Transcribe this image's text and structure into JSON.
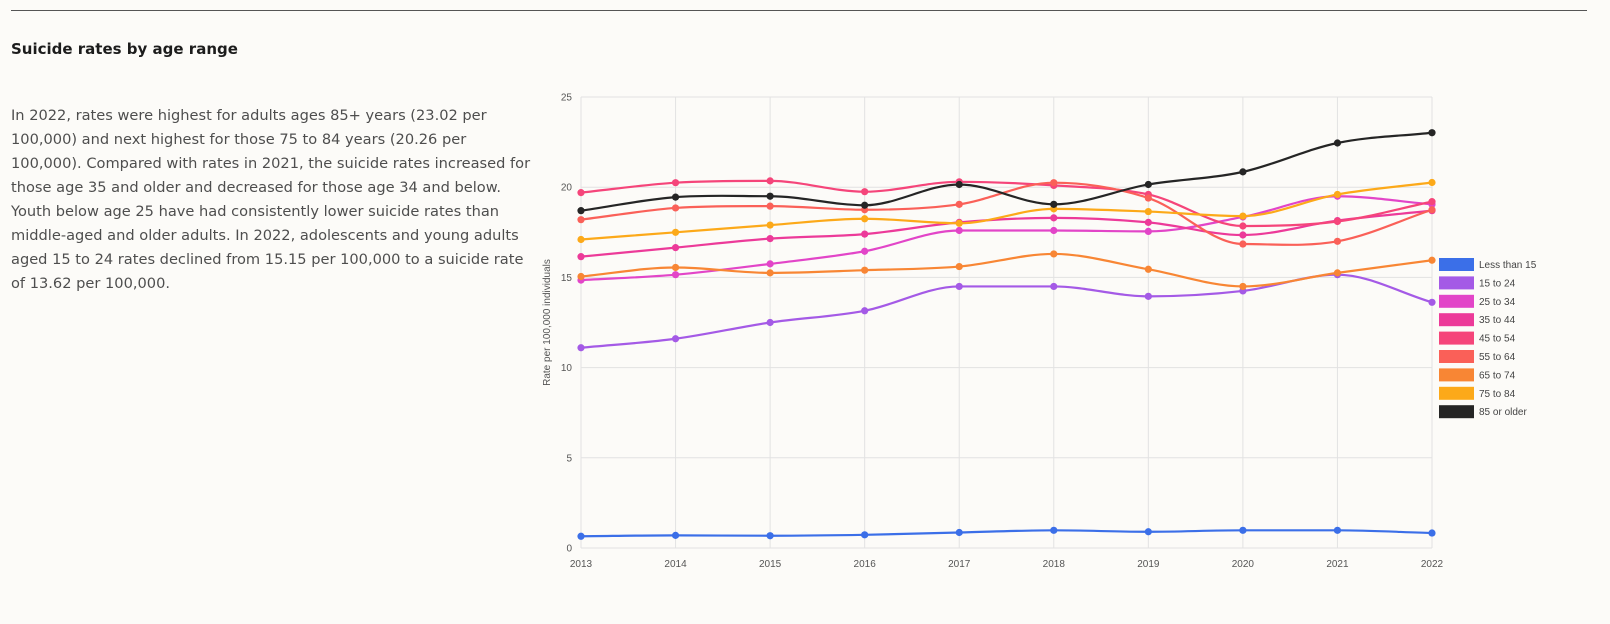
{
  "section": {
    "title": "Suicide rates by age range",
    "summary": "In 2022, rates were highest for adults ages 85+ years (23.02 per 100,000) and next highest for those 75 to 84 years (20.26 per 100,000). Compared with rates in 2021, the suicide rates increased for those age 35 and older and decreased for those age 34 and below. Youth below age 25 have had consistently lower suicide rates than middle-aged and older adults. In 2022, adolescents and young adults aged 15 to 24 rates declined from 15.15 per 100,000 to a suicide rate of 13.62 per 100,000."
  },
  "chart_data": {
    "type": "line",
    "title": "",
    "xlabel": "",
    "ylabel": "Rate per 100,000 individuals",
    "x": [
      2013,
      2014,
      2015,
      2016,
      2017,
      2018,
      2019,
      2020,
      2021,
      2022
    ],
    "ylim": [
      0,
      25
    ],
    "yticks": [
      0,
      5,
      10,
      15,
      20,
      25
    ],
    "grid": true,
    "legend_position": "right",
    "smooth": true,
    "series": [
      {
        "name": "Less than 15",
        "color": "#3b6fe8",
        "values": [
          0.65,
          0.7,
          0.68,
          0.73,
          0.86,
          0.98,
          0.9,
          0.98,
          0.98,
          0.83
        ]
      },
      {
        "name": "15 to 24",
        "color": "#a45ae6",
        "values": [
          11.1,
          11.6,
          12.5,
          13.15,
          14.5,
          14.5,
          13.95,
          14.25,
          15.15,
          13.62
        ]
      },
      {
        "name": "25 to 34",
        "color": "#e245c8",
        "values": [
          14.85,
          15.15,
          15.75,
          16.45,
          17.6,
          17.6,
          17.55,
          18.35,
          19.5,
          19.05
        ]
      },
      {
        "name": "35 to 44",
        "color": "#ec3a99",
        "values": [
          16.15,
          16.65,
          17.15,
          17.4,
          18.05,
          18.3,
          18.05,
          17.35,
          18.15,
          18.7
        ]
      },
      {
        "name": "45 to 54",
        "color": "#f5457a",
        "values": [
          19.7,
          20.25,
          20.35,
          19.75,
          20.3,
          20.1,
          19.6,
          17.85,
          18.1,
          19.2
        ]
      },
      {
        "name": "55 to 64",
        "color": "#fa6058",
        "values": [
          18.2,
          18.85,
          18.95,
          18.75,
          19.05,
          20.25,
          19.4,
          16.85,
          17.0,
          18.75
        ]
      },
      {
        "name": "65 to 74",
        "color": "#f88634",
        "values": [
          15.05,
          15.55,
          15.25,
          15.4,
          15.6,
          16.3,
          15.45,
          14.5,
          15.25,
          15.95
        ]
      },
      {
        "name": "75 to 84",
        "color": "#fca919",
        "values": [
          17.1,
          17.5,
          17.9,
          18.25,
          18.0,
          18.8,
          18.65,
          18.4,
          19.6,
          20.26
        ]
      },
      {
        "name": "85 or older",
        "color": "#252525",
        "values": [
          18.7,
          19.45,
          19.5,
          19.0,
          20.15,
          19.05,
          20.15,
          20.85,
          22.45,
          23.02
        ]
      }
    ]
  }
}
